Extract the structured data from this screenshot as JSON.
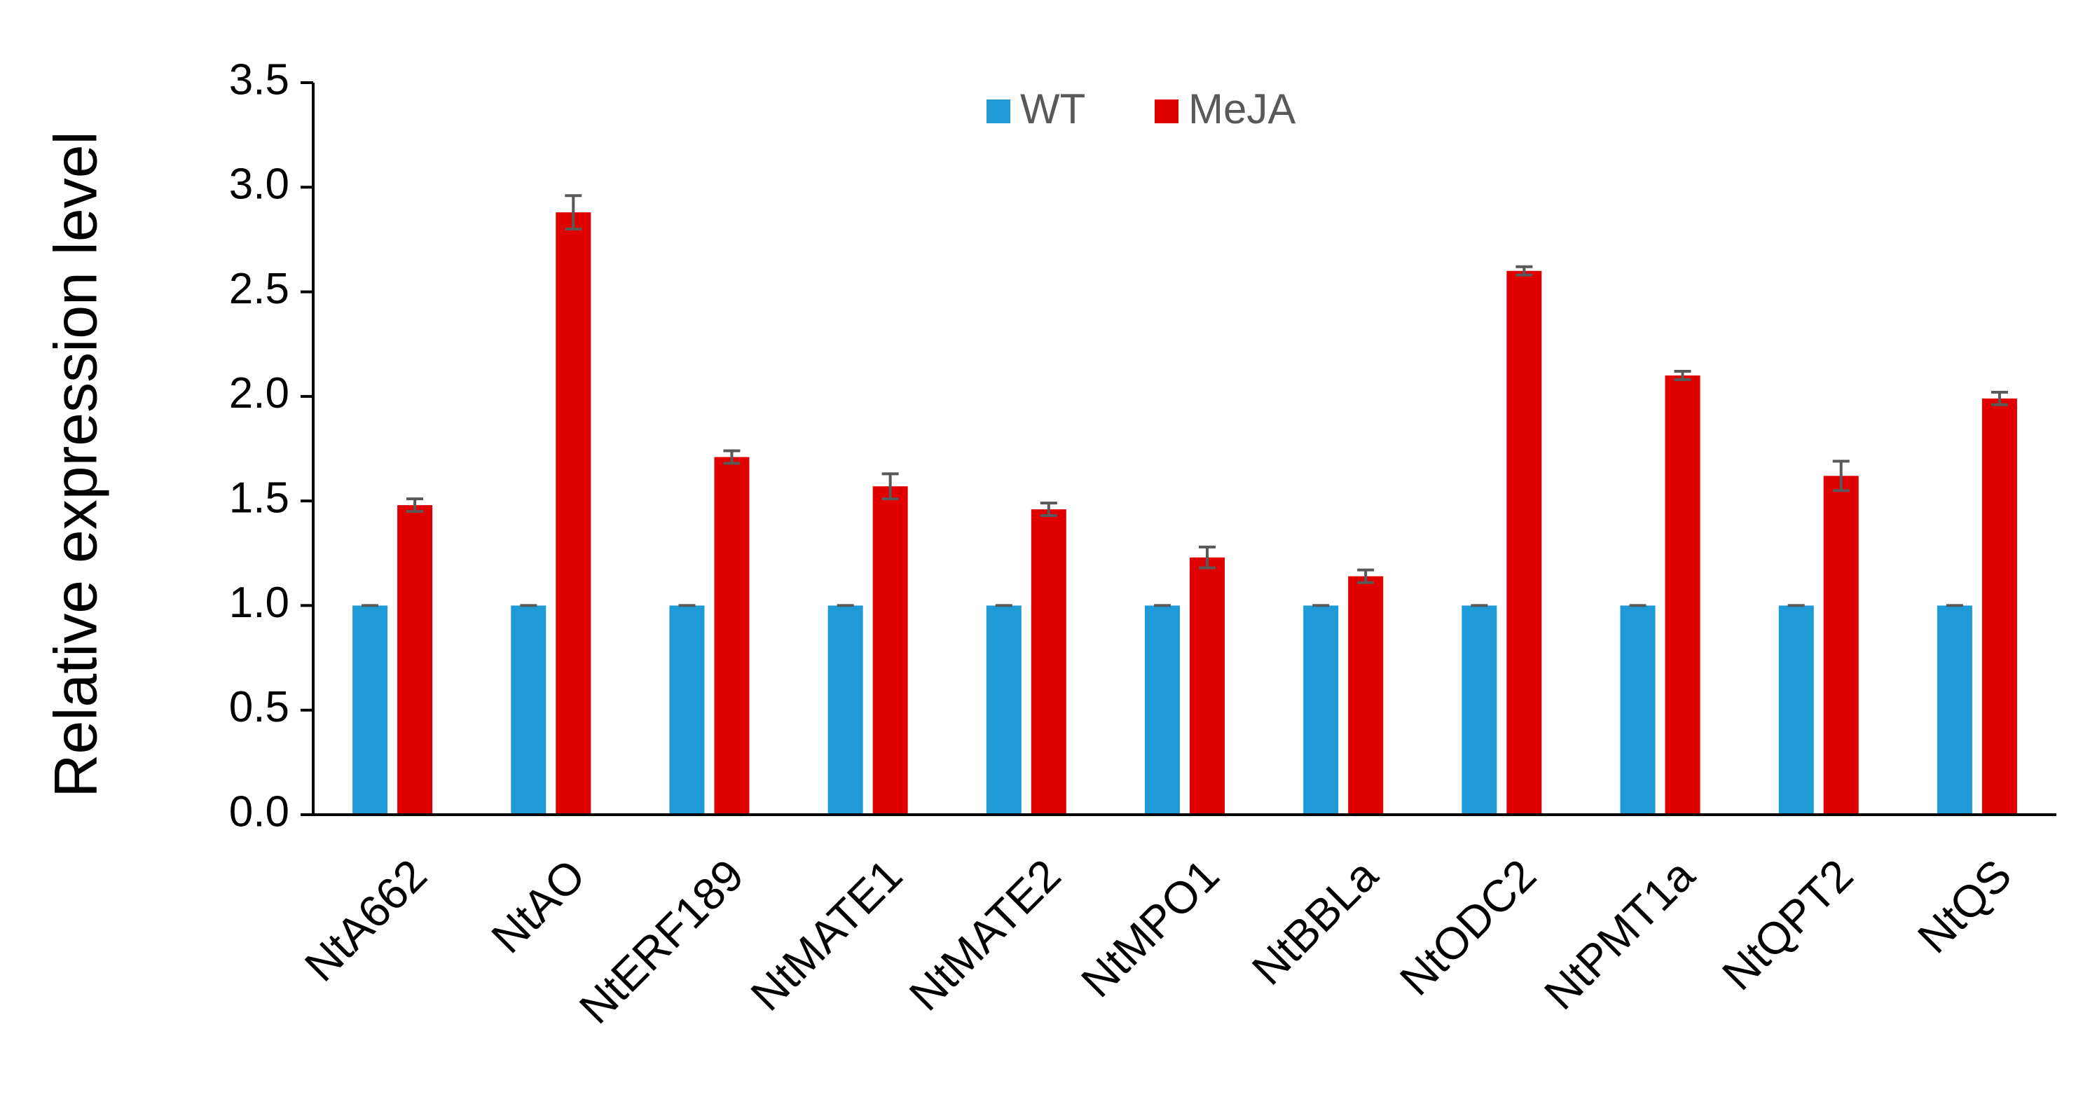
{
  "chart_data": {
    "type": "bar",
    "title": "",
    "xlabel": "",
    "ylabel": "Relative expression level",
    "ylim": [
      0,
      3.5
    ],
    "yticks": [
      "0.0",
      "0.5",
      "1.0",
      "1.5",
      "2.0",
      "2.5",
      "3.0",
      "3.5"
    ],
    "grid": false,
    "legend_position": "top-center",
    "categories": [
      "NtA662",
      "NtAO",
      "NtERF189",
      "NtMATE1",
      "NtMATE2",
      "NtMPO1",
      "NtBBLa",
      "NtODC2",
      "NtPMT1a",
      "NtQPT2",
      "NtQS"
    ],
    "series": [
      {
        "name": "WT",
        "color": "#1E9BD7",
        "values": [
          1.0,
          1.0,
          1.0,
          1.0,
          1.0,
          1.0,
          1.0,
          1.0,
          1.0,
          1.0,
          1.0
        ],
        "errors": [
          0,
          0,
          0,
          0,
          0,
          0,
          0,
          0,
          0,
          0,
          0
        ]
      },
      {
        "name": "MeJA",
        "color": "#E00000",
        "values": [
          1.48,
          2.88,
          1.71,
          1.57,
          1.46,
          1.23,
          1.14,
          2.6,
          2.1,
          1.62,
          1.99
        ],
        "errors": [
          0.03,
          0.08,
          0.03,
          0.06,
          0.03,
          0.05,
          0.03,
          0.02,
          0.02,
          0.07,
          0.03
        ]
      }
    ],
    "error_bar_color": "#595959",
    "axis_color": "#000000"
  }
}
